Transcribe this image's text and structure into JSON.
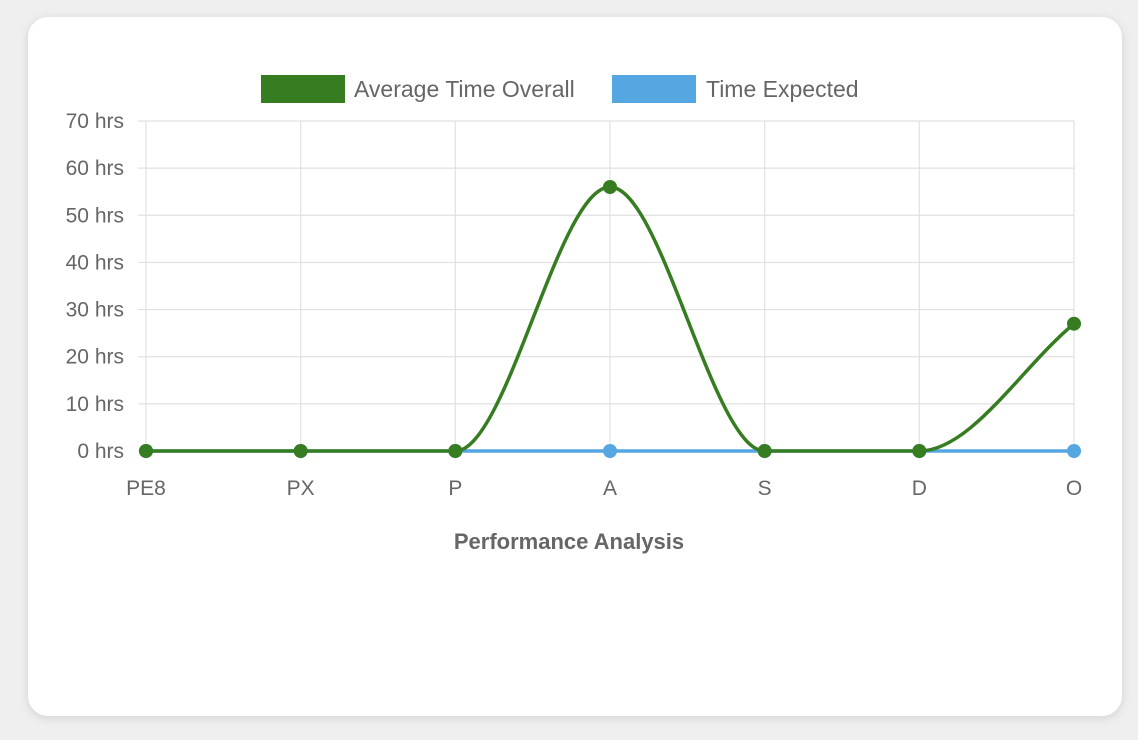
{
  "chart_data": {
    "type": "line",
    "categories": [
      "PE8",
      "PX",
      "P",
      "A",
      "S",
      "D",
      "O"
    ],
    "series": [
      {
        "name": "Average Time Overall",
        "values": [
          0,
          0,
          0,
          56,
          0,
          0,
          27
        ],
        "color": "#367c21"
      },
      {
        "name": "Time Expected",
        "values": [
          0,
          0,
          0,
          0,
          0,
          0,
          0
        ],
        "color": "#54a7e0"
      }
    ],
    "yticks": [
      "0 hrs",
      "10 hrs",
      "20 hrs",
      "30 hrs",
      "40 hrs",
      "50 hrs",
      "60 hrs",
      "70 hrs"
    ],
    "ytick_values": [
      0,
      10,
      20,
      30,
      40,
      50,
      60,
      70
    ],
    "ylim": [
      0,
      70
    ],
    "xlabel": "Performance Analysis",
    "ylabel": "",
    "grid": true,
    "legend_position": "top",
    "grid_color": "#e1e1e1",
    "text_color": "#666666"
  }
}
